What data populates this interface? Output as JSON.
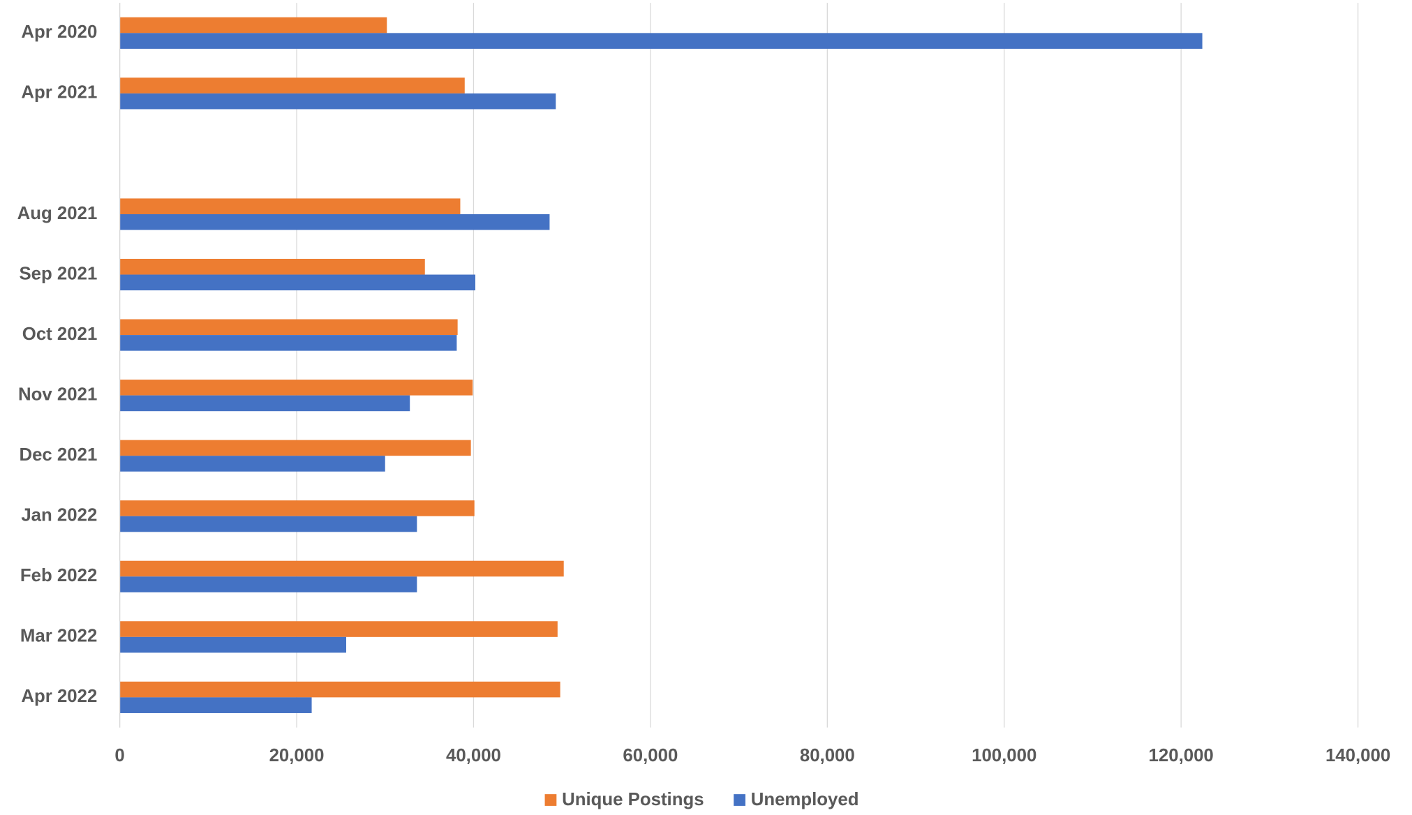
{
  "chart_data": {
    "type": "hbar",
    "categories": [
      "Apr 2020",
      "Apr 2021",
      null,
      "Aug 2021",
      "Sep 2021",
      "Oct 2021",
      "Nov 2021",
      "Dec 2021",
      "Jan 2022",
      "Feb 2022",
      "Mar 2022",
      "Apr 2022"
    ],
    "series": [
      {
        "name": "Unique Postings",
        "color": "#ed7d31",
        "values": [
          30200,
          39000,
          null,
          38500,
          34500,
          38200,
          39900,
          39700,
          40100,
          50200,
          49500,
          49800
        ]
      },
      {
        "name": "Unemployed",
        "color": "#4472c4",
        "values": [
          122400,
          49300,
          null,
          48600,
          40200,
          38100,
          32800,
          30000,
          33600,
          33600,
          25600,
          21700
        ]
      }
    ],
    "xlim": [
      0,
      140000
    ],
    "xticks": [
      0,
      {
        "value": 20000,
        "label": "20,000"
      },
      {
        "value": 40000,
        "label": "40,000"
      },
      {
        "value": 60000,
        "label": "60,000"
      },
      {
        "value": 80000,
        "label": "80,000"
      },
      {
        "value": 100000,
        "label": "100,000"
      },
      {
        "value": 120000,
        "label": "120,000"
      },
      {
        "value": 140000,
        "label": "140,000"
      }
    ],
    "grid": true,
    "legend": "bottom"
  }
}
